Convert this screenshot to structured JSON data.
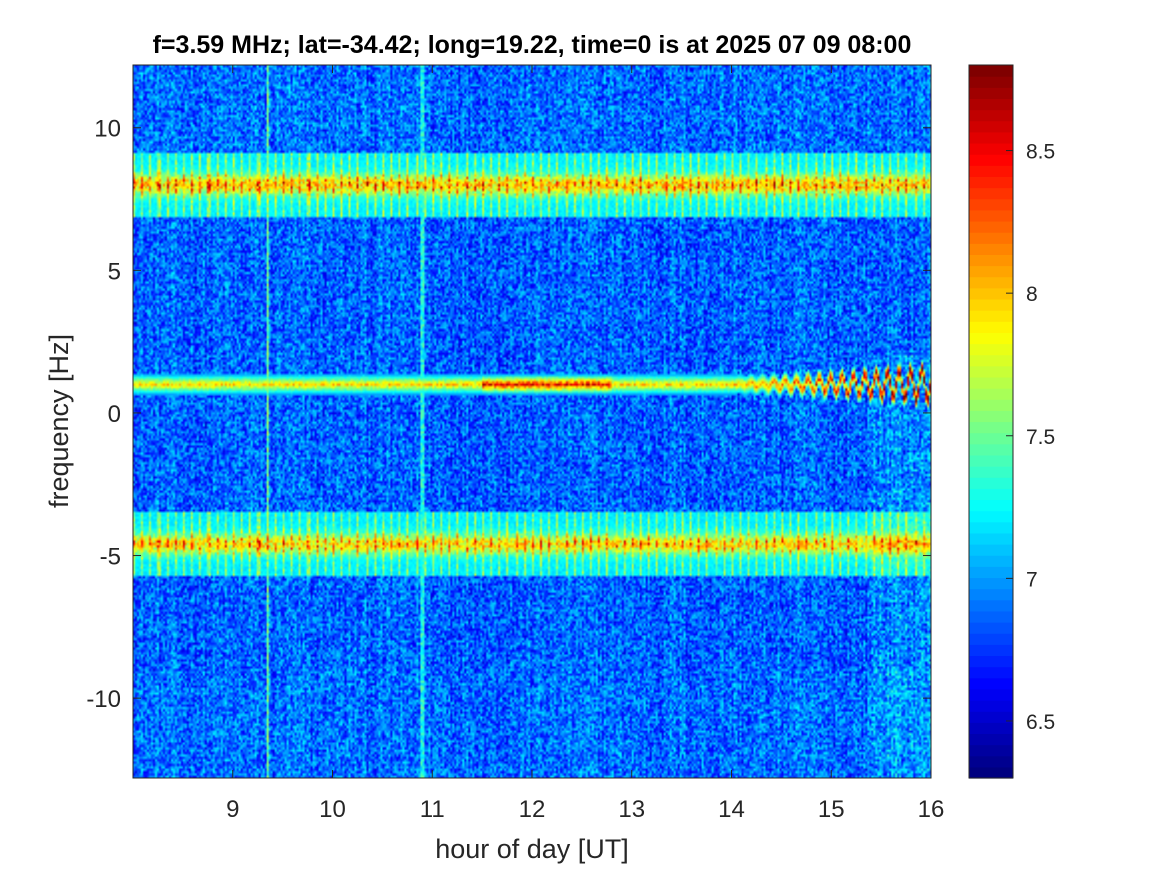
{
  "chart_data": {
    "type": "heatmap",
    "title": "f=3.59 MHz;  lat=-34.42; long=19.22, time=0 is at 2025 07 09 08:00",
    "xlabel": "hour of day [UT]",
    "ylabel": "frequency [Hz]",
    "xlim": [
      8.0,
      16.0
    ],
    "ylim": [
      -12.8,
      12.2
    ],
    "x_ticks": [
      9,
      10,
      11,
      12,
      13,
      14,
      15,
      16
    ],
    "x_tick_labels": [
      "9",
      "10",
      "11",
      "12",
      "13",
      "14",
      "15",
      "16"
    ],
    "y_ticks": [
      10,
      5,
      0,
      -5,
      -10
    ],
    "y_tick_labels": [
      "10",
      "5",
      "0",
      "-5",
      "-10"
    ],
    "colorbar": {
      "colormap": "jet",
      "clim": [
        6.3,
        8.8
      ],
      "ticks": [
        8.5,
        8,
        7.5,
        7,
        6.5
      ],
      "tick_labels": [
        "8.5",
        "8",
        "7.5",
        "7",
        "6.5"
      ]
    },
    "grid": false,
    "background_level": 7.0,
    "features": [
      {
        "kind": "horizontal_band",
        "freq_hz": 8.0,
        "width_hz": 1.6,
        "x_range": [
          8.0,
          16.0
        ],
        "peak_level": 8.5,
        "comb_spacing_hours": 0.0833
      },
      {
        "kind": "horizontal_band",
        "freq_hz": -4.6,
        "width_hz": 1.6,
        "x_range": [
          8.0,
          16.0
        ],
        "peak_level": 8.4,
        "comb_spacing_hours": 0.0833
      },
      {
        "kind": "doppler_trace",
        "freq_hz": 1.0,
        "x_range": [
          8.0,
          16.0
        ],
        "peak_level": 8.8,
        "oscillation_start_hour": 14.0
      },
      {
        "kind": "vertical_line",
        "x_hour": 9.35,
        "peak_level": 7.6
      },
      {
        "kind": "vertical_line",
        "x_hour": 10.9,
        "peak_level": 7.4
      },
      {
        "kind": "elevated_region",
        "x_range": [
          15.4,
          16.0
        ],
        "peak_level": 7.6
      }
    ]
  }
}
